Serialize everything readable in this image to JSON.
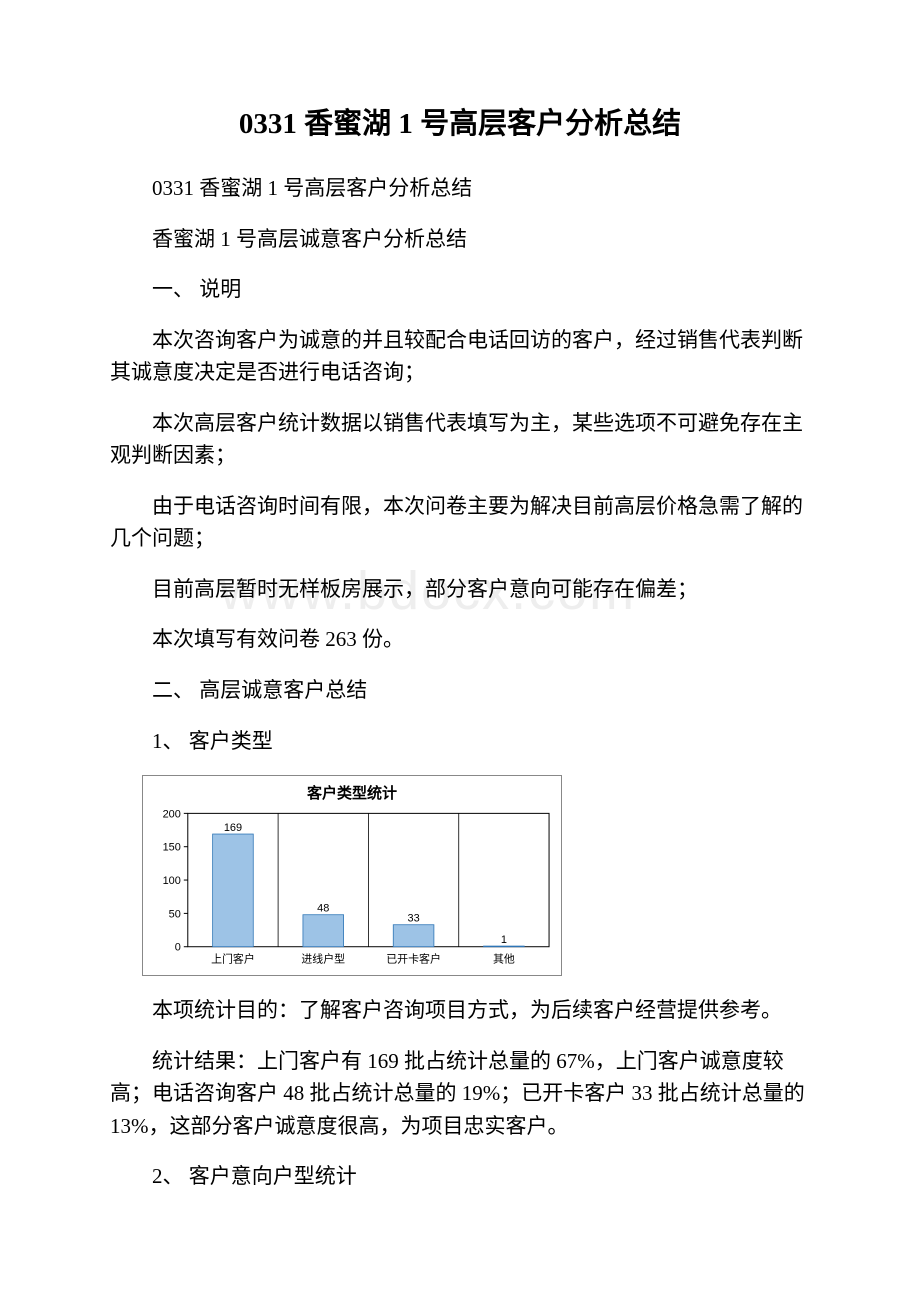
{
  "watermark": "www.bdocx.com",
  "title": "0331 香蜜湖 1 号高层客户分析总结",
  "paragraphs": {
    "p1": "0331 香蜜湖 1 号高层客户分析总结",
    "p2": "香蜜湖 1 号高层诚意客户分析总结",
    "p3": "一、 说明",
    "p4": " 本次咨询客户为诚意的并且较配合电话回访的客户，经过销售代表判断其诚意度决定是否进行电话咨询；",
    "p5": " 本次高层客户统计数据以销售代表填写为主，某些选项不可避免存在主观判断因素；",
    "p6": " 由于电话咨询时间有限，本次问卷主要为解决目前高层价格急需了解的几个问题；",
    "p7": " 目前高层暂时无样板房展示，部分客户意向可能存在偏差；",
    "p8": " 本次填写有效问卷 263 份。",
    "p9": "二、 高层诚意客户总结",
    "p10": "1、 客户类型",
    "p11": " 本项统计目的：了解客户咨询项目方式，为后续客户经营提供参考。",
    "p12": " 统计结果：上门客户有 169 批占统计总量的 67%，上门客户诚意度较高；电话咨询客户 48 批占统计总量的 19%；已开卡客户 33 批占统计总量的 13%，这部分客户诚意度很高，为项目忠实客户。",
    "p13": "2、 客户意向户型统计"
  },
  "chart": {
    "type": "bar",
    "title": "客户类型统计",
    "categories": [
      "上门客户",
      "进线户型",
      "已开卡客户",
      "其他"
    ],
    "values": [
      169,
      48,
      33,
      1
    ],
    "bar_color": "#9dc3e6",
    "bar_stroke": "#2e75b6",
    "background_color": "#ffffff",
    "border_color": "#888888",
    "ylim": [
      0,
      200
    ],
    "ytick_step": 50,
    "yticks": [
      0,
      50,
      100,
      150,
      200
    ],
    "title_fontsize": 15,
    "label_fontsize": 11,
    "bar_width_ratio": 0.45,
    "plot_bg": "#ffffff",
    "axis_color": "#000000"
  }
}
